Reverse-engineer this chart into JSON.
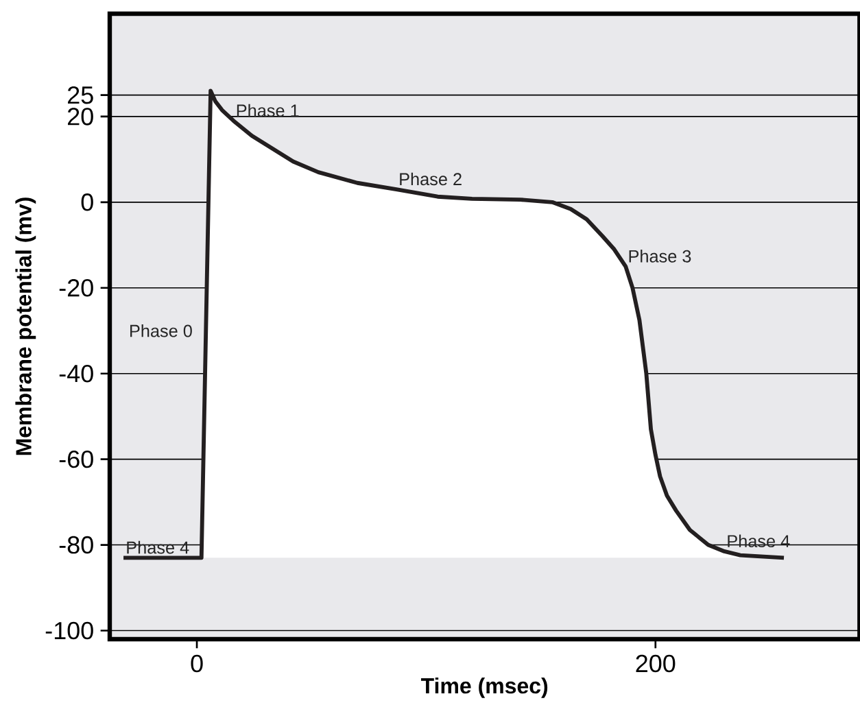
{
  "chart_data": {
    "type": "line",
    "xlabel": "Time (msec)",
    "ylabel": "Membrane potential (mv)",
    "xlim": [
      -38,
      289
    ],
    "ylim": [
      -102,
      44
    ],
    "xticks": [
      0,
      200
    ],
    "yticks": [
      25,
      20,
      0,
      -20,
      -40,
      -60,
      -80,
      -100
    ],
    "grid": "y",
    "series": [
      {
        "color": "#231f20",
        "x": [
          -32,
          2,
          6,
          8,
          11,
          16,
          24,
          33,
          42,
          53,
          70,
          87,
          105,
          120,
          141,
          155,
          163,
          170,
          177,
          182,
          187,
          190,
          193,
          196,
          198,
          200,
          202,
          205,
          209,
          215,
          223,
          230,
          237,
          256
        ],
        "values": [
          -83,
          -83,
          26,
          23.6,
          21.5,
          19,
          15.5,
          12.5,
          9.5,
          7,
          4.5,
          3,
          1.3,
          0.8,
          0.6,
          0,
          -1.6,
          -4,
          -8,
          -11,
          -15,
          -20,
          -27.5,
          -40,
          -53,
          -59,
          -64,
          -68.5,
          -72,
          -76.5,
          -80,
          -81.5,
          -82.4,
          -83
        ]
      }
    ],
    "annotations": [
      {
        "text": "Phase 0",
        "x": 3.9,
        "y": -30
      },
      {
        "text": "Phase 1",
        "x": 16,
        "y": 19
      },
      {
        "text": "Phase 2",
        "x": 87,
        "y": 3
      },
      {
        "text": "Phase 3",
        "x": 187,
        "y": -15
      },
      {
        "text": "Phase 4",
        "x": -32,
        "y": -83
      },
      {
        "text": "Phase 4",
        "x": 230,
        "y": -81.5
      }
    ]
  }
}
